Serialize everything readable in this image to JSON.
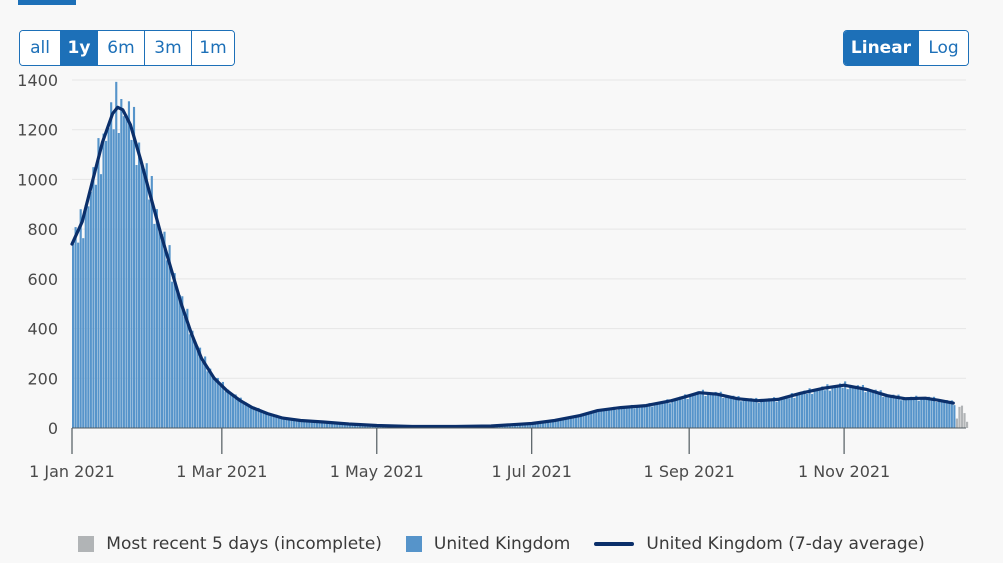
{
  "controls": {
    "range_buttons": [
      {
        "label": "all",
        "active": false
      },
      {
        "label": "1y",
        "active": true
      },
      {
        "label": "6m",
        "active": false
      },
      {
        "label": "3m",
        "active": false
      },
      {
        "label": "1m",
        "active": false
      }
    ],
    "scale_buttons": [
      {
        "label": "Linear",
        "active": true
      },
      {
        "label": "Log",
        "active": false
      }
    ]
  },
  "colors": {
    "accent": "#1d70b8",
    "bar": "#5694ca",
    "bar_incomplete": "#b1b4b6",
    "average_line": "#0b2f6a",
    "grid": "#e6e6e6",
    "axis_text": "#4a4a4a"
  },
  "chart_data": {
    "type": "bar",
    "title": "",
    "xlabel": "",
    "ylabel": "",
    "ylim": [
      0,
      1400
    ],
    "yticks": [
      0,
      200,
      400,
      600,
      800,
      1000,
      1200,
      1400
    ],
    "x_start": "2021-01-01",
    "x_end": "2021-12-19",
    "xticks": [
      {
        "date": "2021-01-01",
        "label": "1 Jan 2021"
      },
      {
        "date": "2021-03-01",
        "label": "1 Mar 2021"
      },
      {
        "date": "2021-05-01",
        "label": "1 May 2021"
      },
      {
        "date": "2021-07-01",
        "label": "1 Jul 2021"
      },
      {
        "date": "2021-09-01",
        "label": "1 Sep 2021"
      },
      {
        "date": "2021-11-01",
        "label": "1 Nov 2021"
      }
    ],
    "grid": true,
    "legend": "bottom",
    "series": [
      {
        "name": "Most recent 5 days (incomplete)",
        "kind": "bar",
        "first_date": "2021-12-15",
        "values": [
          38,
          85,
          90,
          60,
          25
        ]
      },
      {
        "name": "United Kingdom",
        "kind": "bar",
        "first_date": "2021-01-01"
      },
      {
        "name": "United Kingdom (7-day average)",
        "kind": "line",
        "first_date": "2021-01-01"
      }
    ],
    "average_points": [
      [
        "2021-01-01",
        740
      ],
      [
        "2021-01-05",
        830
      ],
      [
        "2021-01-09",
        990
      ],
      [
        "2021-01-13",
        1150
      ],
      [
        "2021-01-17",
        1265
      ],
      [
        "2021-01-19",
        1290
      ],
      [
        "2021-01-21",
        1280
      ],
      [
        "2021-01-24",
        1220
      ],
      [
        "2021-01-28",
        1080
      ],
      [
        "2021-02-01",
        930
      ],
      [
        "2021-02-05",
        780
      ],
      [
        "2021-02-09",
        640
      ],
      [
        "2021-02-13",
        500
      ],
      [
        "2021-02-17",
        380
      ],
      [
        "2021-02-21",
        280
      ],
      [
        "2021-02-26",
        200
      ],
      [
        "2021-03-03",
        150
      ],
      [
        "2021-03-08",
        112
      ],
      [
        "2021-03-13",
        82
      ],
      [
        "2021-03-19",
        58
      ],
      [
        "2021-03-25",
        40
      ],
      [
        "2021-04-01",
        30
      ],
      [
        "2021-04-10",
        24
      ],
      [
        "2021-04-20",
        16
      ],
      [
        "2021-05-01",
        10
      ],
      [
        "2021-05-15",
        6
      ],
      [
        "2021-06-01",
        6
      ],
      [
        "2021-06-15",
        8
      ],
      [
        "2021-07-01",
        18
      ],
      [
        "2021-07-10",
        30
      ],
      [
        "2021-07-20",
        50
      ],
      [
        "2021-07-27",
        70
      ],
      [
        "2021-08-05",
        82
      ],
      [
        "2021-08-15",
        90
      ],
      [
        "2021-08-25",
        110
      ],
      [
        "2021-09-01",
        130
      ],
      [
        "2021-09-05",
        142
      ],
      [
        "2021-09-12",
        136
      ],
      [
        "2021-09-20",
        118
      ],
      [
        "2021-09-28",
        110
      ],
      [
        "2021-10-06",
        115
      ],
      [
        "2021-10-15",
        140
      ],
      [
        "2021-10-24",
        160
      ],
      [
        "2021-11-01",
        172
      ],
      [
        "2021-11-10",
        155
      ],
      [
        "2021-11-18",
        130
      ],
      [
        "2021-11-25",
        118
      ],
      [
        "2021-12-03",
        120
      ],
      [
        "2021-12-08",
        112
      ],
      [
        "2021-12-14",
        100
      ]
    ]
  }
}
